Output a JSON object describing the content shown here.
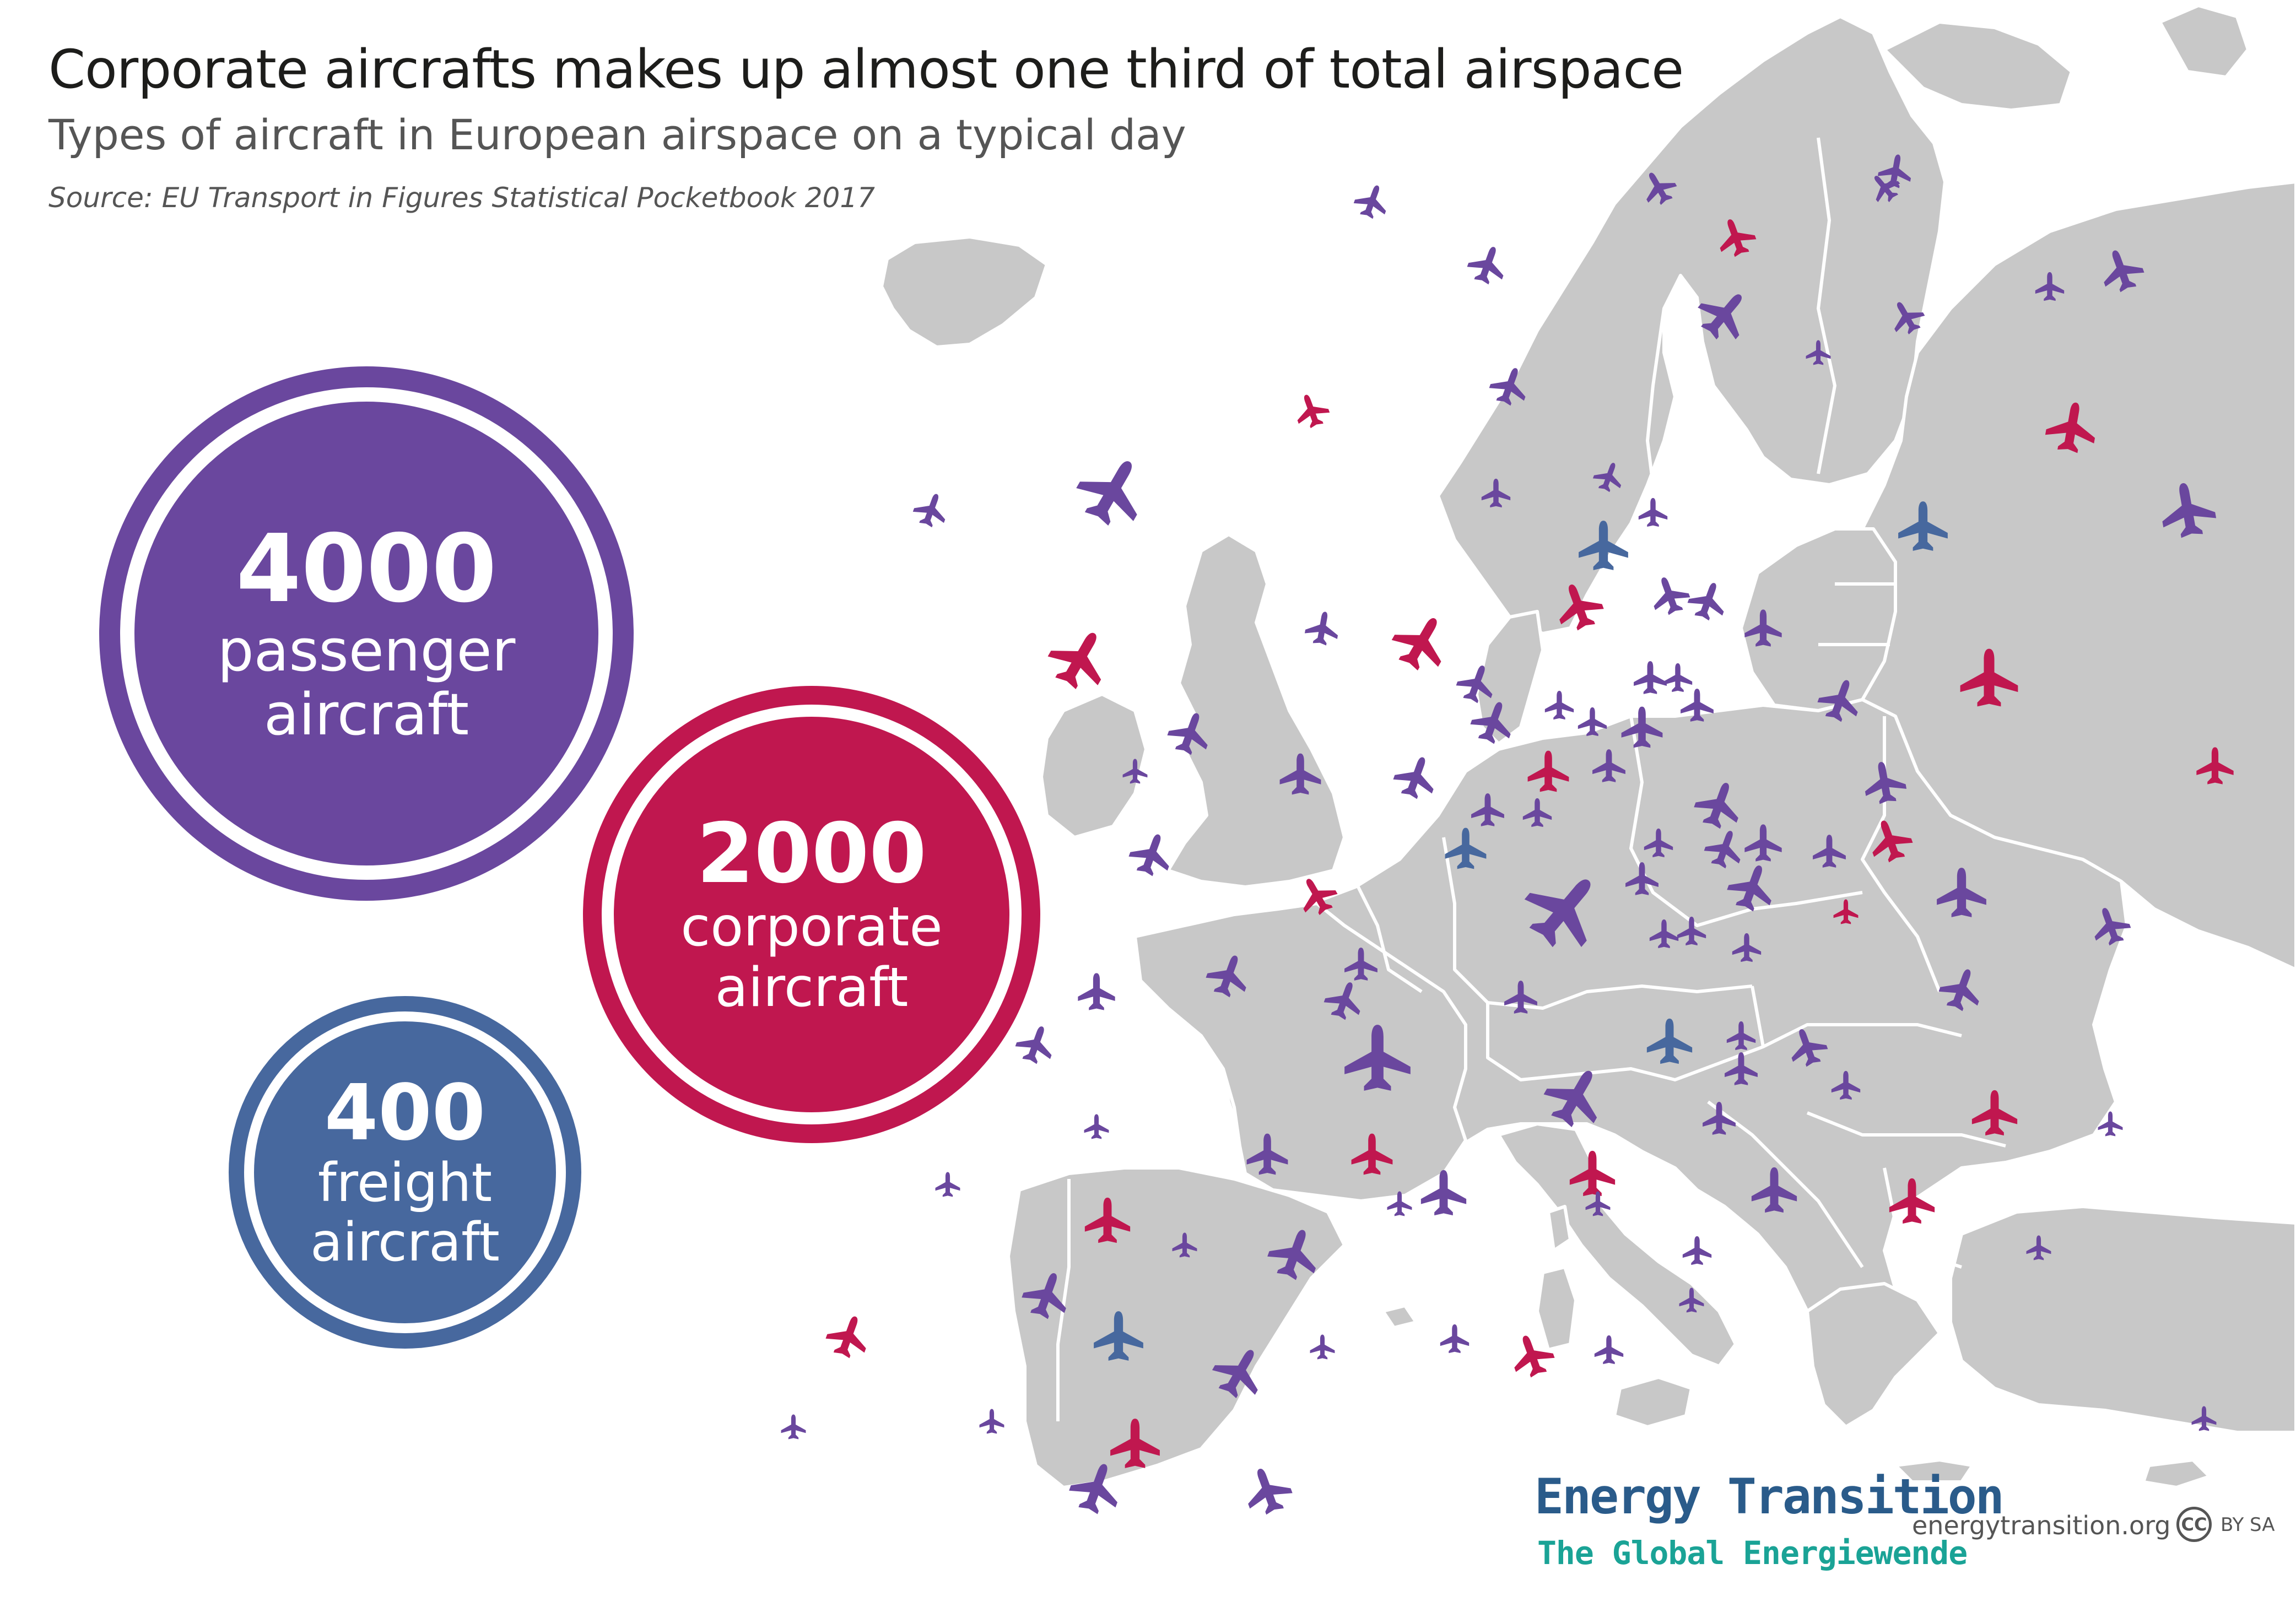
{
  "header": {
    "title": "Corporate aircrafts makes up almost one third of total airspace",
    "subtitle": "Types of aircraft in European airspace on a typical day",
    "source": "Source:  EU Transport in Figures Statistical Pocketbook 2017"
  },
  "stats": [
    {
      "value": "4000",
      "line1": "passenger",
      "line2": "aircraft",
      "color": "#6a479e"
    },
    {
      "value": "2000",
      "line1": "corporate",
      "line2": "aircraft",
      "color": "#c0174f"
    },
    {
      "value": "400",
      "line1": "freight",
      "line2": "aircraft",
      "color": "#47689e"
    }
  ],
  "map": {
    "land_color": "#c8c8c8",
    "border_color": "#ffffff",
    "plane_icon": "airplane-icon"
  },
  "footer": {
    "brand_line1": "Energy Transition",
    "brand_line2": "The Global Energiewende",
    "url": "energytransition.org",
    "license_badge": "CC",
    "license_text": "BY SA"
  }
}
